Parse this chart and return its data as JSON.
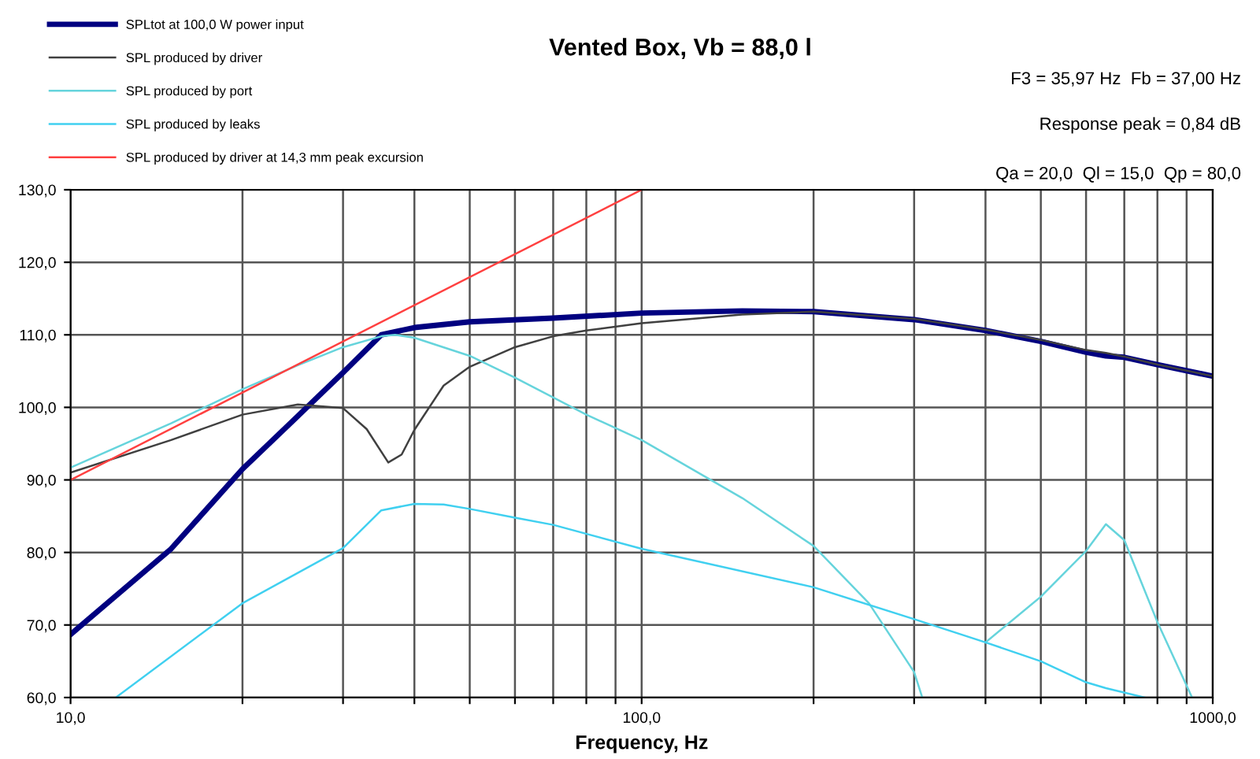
{
  "chart_data": {
    "type": "line",
    "title": "Vented Box, Vb = 88,0 l",
    "xlabel": "Frequency, Hz",
    "series": [
      {
        "name": "SPLtot at 100,0 W power input",
        "color": "#000080",
        "x": [
          10,
          15,
          20,
          25,
          30,
          35,
          40,
          50,
          70,
          100,
          150,
          200,
          300,
          400,
          500,
          600,
          650,
          700,
          800,
          1000
        ],
        "values": [
          68.7,
          80.5,
          91.5,
          98.8,
          104.8,
          110.0,
          111.0,
          111.8,
          112.3,
          113.0,
          113.3,
          113.2,
          112.1,
          110.6,
          109.1,
          107.6,
          107.1,
          106.9,
          105.9,
          104.3
        ]
      },
      {
        "name": "SPL produced by driver",
        "color": "#404040",
        "x": [
          10,
          15,
          20,
          25,
          30,
          33,
          36,
          38,
          40,
          45,
          50,
          60,
          70,
          80,
          100,
          150,
          200,
          300,
          400,
          500,
          600,
          650,
          700,
          800,
          1000
        ],
        "values": [
          91.0,
          95.5,
          99.0,
          100.4,
          99.9,
          97.0,
          92.4,
          93.5,
          96.9,
          103.0,
          105.6,
          108.3,
          109.8,
          110.6,
          111.6,
          112.8,
          113.2,
          112.2,
          110.7,
          109.3,
          107.9,
          107.5,
          107.0,
          105.9,
          104.3
        ]
      },
      {
        "name": "SPL produced by port",
        "color": "#66d4dc",
        "x": [
          10,
          15,
          20,
          25,
          30,
          35,
          37,
          40,
          50,
          60,
          80,
          100,
          150,
          200,
          250,
          300,
          310,
          348,
          400,
          500,
          600,
          650,
          700,
          800,
          920
        ],
        "values": [
          91.7,
          97.8,
          102.5,
          105.8,
          108.3,
          109.8,
          110.0,
          109.6,
          107.1,
          104.1,
          99.0,
          95.5,
          87.5,
          80.9,
          73.0,
          63.5,
          60.0,
          null,
          67.6,
          73.9,
          80.2,
          83.9,
          81.7,
          70.4,
          60.0
        ]
      },
      {
        "name": "SPL produced by leaks",
        "color": "#40d0f0",
        "x": [
          12,
          20,
          30,
          35,
          40,
          45,
          50,
          60,
          70,
          100,
          200,
          300,
          400,
          500,
          600,
          650,
          760
        ],
        "values": [
          60.0,
          73.0,
          80.6,
          85.8,
          86.7,
          86.6,
          86.0,
          84.8,
          83.8,
          80.5,
          75.2,
          70.8,
          67.6,
          65.0,
          62.1,
          61.3,
          60.0
        ]
      },
      {
        "name": "SPL produced by driver at 14,3 mm peak excursion",
        "color": "#ff4040",
        "x": [
          10,
          100
        ],
        "values": [
          90.0,
          130.0
        ]
      }
    ],
    "xlim": [
      10,
      1000
    ],
    "ylim": [
      60,
      130
    ],
    "log": "x",
    "xticks": [
      {
        "value": 10,
        "label": "10,0"
      },
      {
        "value": 20,
        "label": null
      },
      {
        "value": 30,
        "label": null
      },
      {
        "value": 40,
        "label": null
      },
      {
        "value": 50,
        "label": null
      },
      {
        "value": 60,
        "label": null
      },
      {
        "value": 70,
        "label": null
      },
      {
        "value": 80,
        "label": null
      },
      {
        "value": 90,
        "label": null
      },
      {
        "value": 100,
        "label": "100,0"
      },
      {
        "value": 200,
        "label": null
      },
      {
        "value": 300,
        "label": null
      },
      {
        "value": 400,
        "label": null
      },
      {
        "value": 500,
        "label": null
      },
      {
        "value": 600,
        "label": null
      },
      {
        "value": 700,
        "label": null
      },
      {
        "value": 800,
        "label": null
      },
      {
        "value": 900,
        "label": null
      },
      {
        "value": 1000,
        "label": "1000,0"
      }
    ],
    "yticks": [
      {
        "value": 60,
        "label": "60,0"
      },
      {
        "value": 70,
        "label": "70,0"
      },
      {
        "value": 80,
        "label": "80,0"
      },
      {
        "value": 90,
        "label": "90,0"
      },
      {
        "value": 100,
        "label": "100,0"
      },
      {
        "value": 110,
        "label": "110,0"
      },
      {
        "value": 120,
        "label": "120,0"
      },
      {
        "value": 130,
        "label": "130,0"
      }
    ],
    "grid": true,
    "legend": "top left",
    "marker": "none",
    "line_style": "solid",
    "annotations": [
      "F3 = 35,97 Hz  Fb = 37,00 Hz",
      "Response peak = 0,84 dB",
      "Qa = 20,0  Ql = 15,0  Qp = 80,0"
    ]
  }
}
